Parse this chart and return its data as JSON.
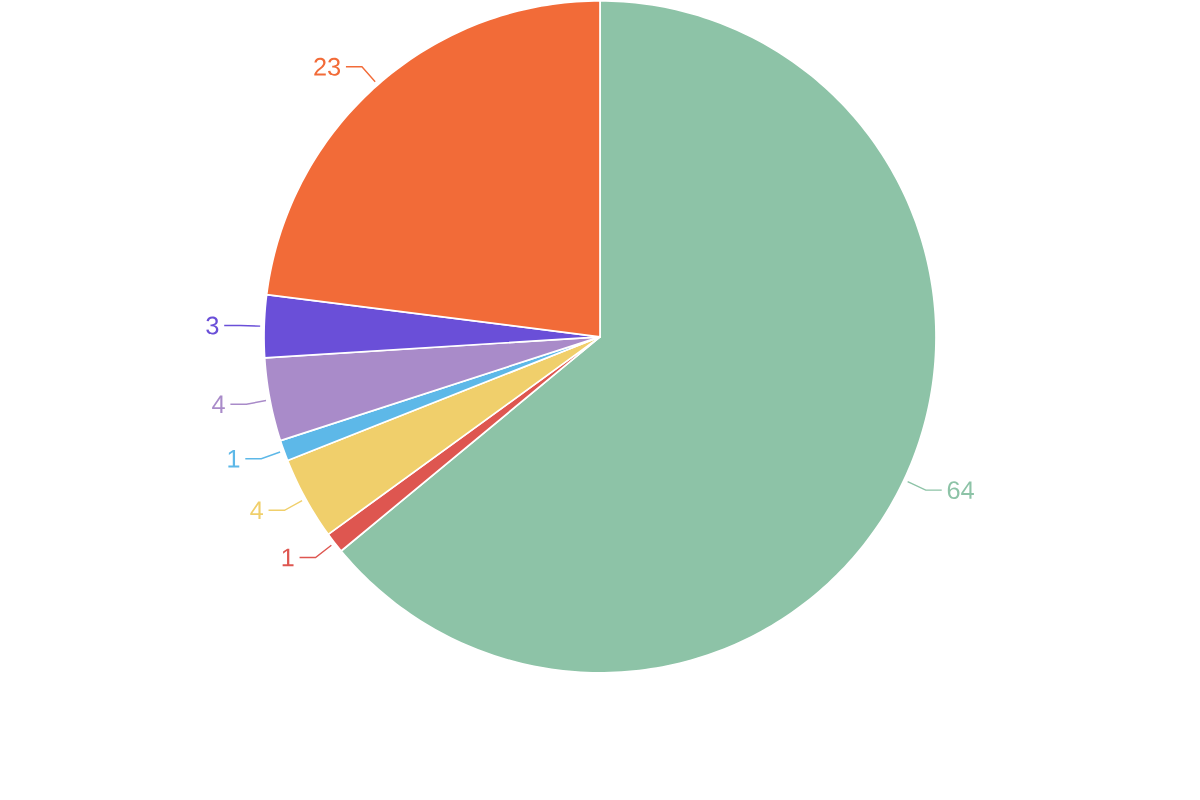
{
  "chart_data": {
    "type": "pie",
    "categories": [
      null,
      null,
      null,
      null,
      null,
      null,
      null
    ],
    "values": [
      64,
      1,
      4,
      1,
      4,
      3,
      23
    ],
    "colors": [
      "#8dc3a7",
      "#de5650",
      "#f0cf6b",
      "#5db8e8",
      "#a98bc9",
      "#6a4fd8",
      "#f26b38"
    ],
    "data_labels": true
  }
}
